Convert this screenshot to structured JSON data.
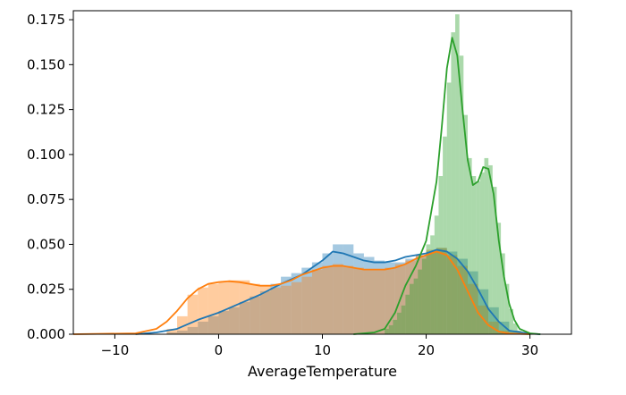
{
  "chart_data": {
    "type": "histogram-kde",
    "xlabel": "AverageTemperature",
    "ylabel": "",
    "title": "",
    "xlim": [
      -14,
      34
    ],
    "ylim": [
      0,
      0.18
    ],
    "x_ticks": [
      -10,
      0,
      10,
      20,
      30
    ],
    "y_ticks": [
      0.0,
      0.025,
      0.05,
      0.075,
      0.1,
      0.125,
      0.15,
      0.175
    ],
    "y_tick_labels": [
      "0.000",
      "0.025",
      "0.050",
      "0.075",
      "0.100",
      "0.125",
      "0.150",
      "0.175"
    ],
    "grid": false,
    "legend": "none",
    "series": [
      {
        "color": "#1f77b4",
        "hist_bin_width": 1,
        "hist": [
          [
            -5,
            0.001
          ],
          [
            -4,
            0.002
          ],
          [
            -3,
            0.004
          ],
          [
            -2,
            0.007
          ],
          [
            -1,
            0.01
          ],
          [
            0,
            0.013
          ],
          [
            1,
            0.015
          ],
          [
            2,
            0.018
          ],
          [
            3,
            0.021
          ],
          [
            4,
            0.024
          ],
          [
            5,
            0.028
          ],
          [
            6,
            0.032
          ],
          [
            7,
            0.034
          ],
          [
            8,
            0.037
          ],
          [
            9,
            0.04
          ],
          [
            10,
            0.045
          ],
          [
            11,
            0.05
          ],
          [
            12,
            0.05
          ],
          [
            13,
            0.045
          ],
          [
            14,
            0.043
          ],
          [
            15,
            0.041
          ],
          [
            16,
            0.04
          ],
          [
            17,
            0.04
          ],
          [
            18,
            0.042
          ],
          [
            19,
            0.044
          ],
          [
            20,
            0.046
          ],
          [
            21,
            0.048
          ],
          [
            22,
            0.046
          ],
          [
            23,
            0.042
          ],
          [
            24,
            0.035
          ],
          [
            25,
            0.025
          ],
          [
            26,
            0.015
          ],
          [
            27,
            0.007
          ],
          [
            28,
            0.002
          ],
          [
            29,
            0.0005
          ]
        ],
        "kde": [
          [
            -8,
            0.0
          ],
          [
            -6,
            0.001
          ],
          [
            -4,
            0.003
          ],
          [
            -2,
            0.008
          ],
          [
            0,
            0.012
          ],
          [
            2,
            0.017
          ],
          [
            4,
            0.022
          ],
          [
            6,
            0.028
          ],
          [
            8,
            0.033
          ],
          [
            10,
            0.041
          ],
          [
            11,
            0.046
          ],
          [
            12,
            0.045
          ],
          [
            13,
            0.043
          ],
          [
            14,
            0.041
          ],
          [
            15,
            0.04
          ],
          [
            16,
            0.04
          ],
          [
            17,
            0.041
          ],
          [
            18,
            0.043
          ],
          [
            20,
            0.045
          ],
          [
            21,
            0.047
          ],
          [
            22,
            0.046
          ],
          [
            23,
            0.042
          ],
          [
            24,
            0.035
          ],
          [
            25,
            0.025
          ],
          [
            26,
            0.014
          ],
          [
            27,
            0.007
          ],
          [
            28,
            0.002
          ],
          [
            30,
            0.0003
          ],
          [
            31,
            0.0
          ]
        ]
      },
      {
        "color": "#ff7f0e",
        "hist_bin_width": 1,
        "hist": [
          [
            -5,
            0.003
          ],
          [
            -4,
            0.01
          ],
          [
            -3,
            0.022
          ],
          [
            -2,
            0.026
          ],
          [
            -1,
            0.028
          ],
          [
            0,
            0.029
          ],
          [
            1,
            0.03
          ],
          [
            2,
            0.03
          ],
          [
            3,
            0.028
          ],
          [
            4,
            0.027
          ],
          [
            5,
            0.026
          ],
          [
            6,
            0.027
          ],
          [
            7,
            0.029
          ],
          [
            8,
            0.032
          ],
          [
            9,
            0.036
          ],
          [
            10,
            0.038
          ],
          [
            11,
            0.039
          ],
          [
            12,
            0.038
          ],
          [
            13,
            0.037
          ],
          [
            14,
            0.036
          ],
          [
            15,
            0.036
          ],
          [
            16,
            0.037
          ],
          [
            17,
            0.039
          ],
          [
            18,
            0.041
          ],
          [
            19,
            0.044
          ],
          [
            20,
            0.047
          ],
          [
            21,
            0.048
          ],
          [
            22,
            0.044
          ],
          [
            23,
            0.038
          ],
          [
            24,
            0.028
          ],
          [
            25,
            0.016
          ],
          [
            26,
            0.007
          ],
          [
            27,
            0.002
          ]
        ],
        "kde": [
          [
            -14,
            0.0
          ],
          [
            -8,
            0.0005
          ],
          [
            -6,
            0.003
          ],
          [
            -5,
            0.007
          ],
          [
            -4,
            0.013
          ],
          [
            -3,
            0.02
          ],
          [
            -2,
            0.025
          ],
          [
            -1,
            0.028
          ],
          [
            0,
            0.029
          ],
          [
            1,
            0.0295
          ],
          [
            2,
            0.029
          ],
          [
            3,
            0.028
          ],
          [
            4,
            0.027
          ],
          [
            5,
            0.027
          ],
          [
            6,
            0.028
          ],
          [
            7,
            0.03
          ],
          [
            8,
            0.033
          ],
          [
            9,
            0.035
          ],
          [
            10,
            0.037
          ],
          [
            11,
            0.038
          ],
          [
            12,
            0.038
          ],
          [
            13,
            0.037
          ],
          [
            14,
            0.036
          ],
          [
            15,
            0.036
          ],
          [
            16,
            0.036
          ],
          [
            17,
            0.037
          ],
          [
            18,
            0.039
          ],
          [
            19,
            0.042
          ],
          [
            20,
            0.044
          ],
          [
            21,
            0.046
          ],
          [
            22,
            0.044
          ],
          [
            23,
            0.036
          ],
          [
            24,
            0.024
          ],
          [
            25,
            0.012
          ],
          [
            26,
            0.005
          ],
          [
            27,
            0.0015
          ],
          [
            28,
            0.0004
          ],
          [
            30,
            0.0
          ]
        ]
      },
      {
        "color": "#2ca02c",
        "hist_bin_width": 0.4,
        "hist": [
          [
            16.0,
            0.003
          ],
          [
            16.4,
            0.005
          ],
          [
            16.8,
            0.008
          ],
          [
            17.2,
            0.012
          ],
          [
            17.6,
            0.016
          ],
          [
            18.0,
            0.022
          ],
          [
            18.4,
            0.028
          ],
          [
            18.8,
            0.031
          ],
          [
            19.2,
            0.036
          ],
          [
            19.6,
            0.042
          ],
          [
            20.0,
            0.05
          ],
          [
            20.4,
            0.055
          ],
          [
            20.8,
            0.066
          ],
          [
            21.2,
            0.088
          ],
          [
            21.6,
            0.11
          ],
          [
            22.0,
            0.14
          ],
          [
            22.4,
            0.168
          ],
          [
            22.8,
            0.178
          ],
          [
            23.2,
            0.155
          ],
          [
            23.6,
            0.122
          ],
          [
            24.0,
            0.098
          ],
          [
            24.4,
            0.088
          ],
          [
            24.8,
            0.085
          ],
          [
            25.2,
            0.09
          ],
          [
            25.6,
            0.098
          ],
          [
            26.0,
            0.094
          ],
          [
            26.4,
            0.082
          ],
          [
            26.8,
            0.062
          ],
          [
            27.2,
            0.045
          ],
          [
            27.6,
            0.028
          ],
          [
            28.0,
            0.014
          ],
          [
            28.4,
            0.006
          ],
          [
            28.8,
            0.002
          ]
        ],
        "kde": [
          [
            13,
            0.0
          ],
          [
            15,
            0.001
          ],
          [
            16,
            0.003
          ],
          [
            17,
            0.012
          ],
          [
            18,
            0.027
          ],
          [
            19,
            0.038
          ],
          [
            20,
            0.052
          ],
          [
            21,
            0.085
          ],
          [
            21.5,
            0.115
          ],
          [
            22,
            0.148
          ],
          [
            22.5,
            0.165
          ],
          [
            23,
            0.155
          ],
          [
            23.5,
            0.125
          ],
          [
            24,
            0.097
          ],
          [
            24.5,
            0.083
          ],
          [
            25,
            0.085
          ],
          [
            25.5,
            0.093
          ],
          [
            26,
            0.092
          ],
          [
            26.5,
            0.078
          ],
          [
            27,
            0.052
          ],
          [
            27.5,
            0.032
          ],
          [
            28,
            0.017
          ],
          [
            28.5,
            0.008
          ],
          [
            29,
            0.003
          ],
          [
            30,
            0.0005
          ],
          [
            31,
            0.0
          ]
        ]
      }
    ]
  }
}
